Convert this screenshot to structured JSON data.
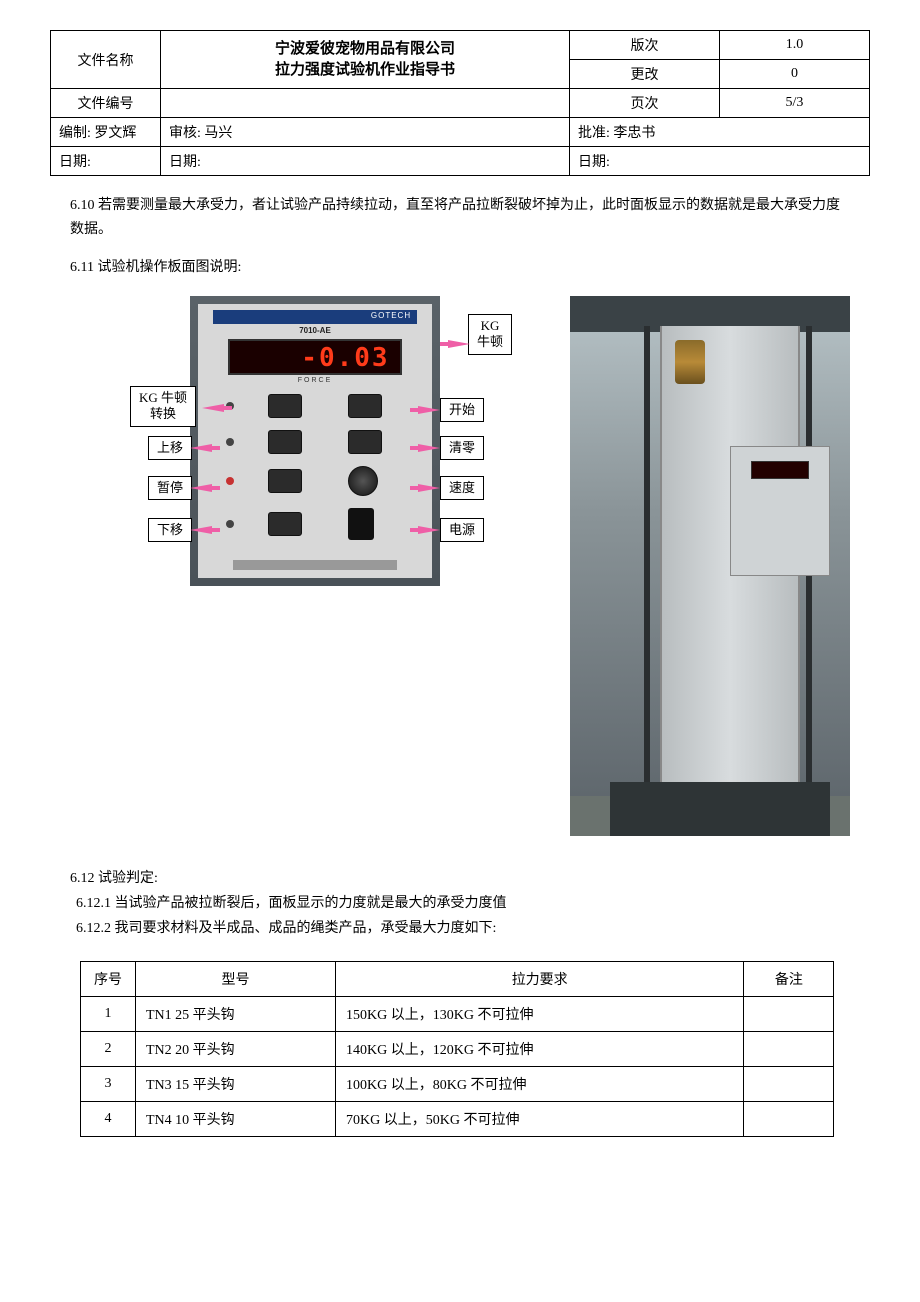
{
  "header": {
    "file_name_label": "文件名称",
    "title_line1": "宁波爱彼宠物用品有限公司",
    "title_line2": "拉力强度试验机作业指导书",
    "version_label": "版次",
    "version_value": "1.0",
    "change_label": "更改",
    "change_value": "0",
    "file_no_label": "文件编号",
    "page_label": "页次",
    "page_value": "5/3",
    "author_label": "编制:",
    "author_value": "罗文辉",
    "reviewer_label": "审核:",
    "reviewer_value": "马兴",
    "approver_label": "批准:",
    "approver_value": "李忠书",
    "date_label": "日期:"
  },
  "para610": "6.10 若需要测量最大承受力，者让试验产品持续拉动，直至将产品拉断裂破坏掉为止，此时面板显示的数据就是最大承受力度数据。",
  "sec611": "6.11 试验机操作板面图说明:",
  "panel": {
    "brand": "GOTECH",
    "model": "7010-AE",
    "display_value": "-0.03",
    "force_label": "FORCE",
    "callouts": {
      "kg_unit": "KG\n牛顿",
      "kg_switch": "KG 牛顿\n转换",
      "start": "开始",
      "up": "上移",
      "zero": "清零",
      "pause": "暂停",
      "speed": "速度",
      "down": "下移",
      "power": "电源"
    },
    "arrow_color": "#ef5fa7"
  },
  "judge": {
    "title": "6.12  试验判定:",
    "item1": "6.12.1 当试验产品被拉断裂后，面板显示的力度就是最大的承受力度值",
    "item2": "6.12.2 我司要求材料及半成品、成品的绳类产品，承受最大力度如下:"
  },
  "table": {
    "headers": {
      "seq": "序号",
      "model": "型号",
      "req": "拉力要求",
      "note": "备注"
    },
    "rows": [
      {
        "seq": "1",
        "model": "TN1 25 平头钩",
        "req": "150KG 以上，130KG 不可拉伸",
        "note": ""
      },
      {
        "seq": "2",
        "model": "TN2 20 平头钩",
        "req": "140KG 以上，120KG 不可拉伸",
        "note": ""
      },
      {
        "seq": "3",
        "model": "TN3 15 平头钩",
        "req": "100KG 以上，80KG 不可拉伸",
        "note": ""
      },
      {
        "seq": "4",
        "model": "TN4 10 平头钩",
        "req": "70KG 以上，50KG 不可拉伸",
        "note": ""
      }
    ]
  }
}
